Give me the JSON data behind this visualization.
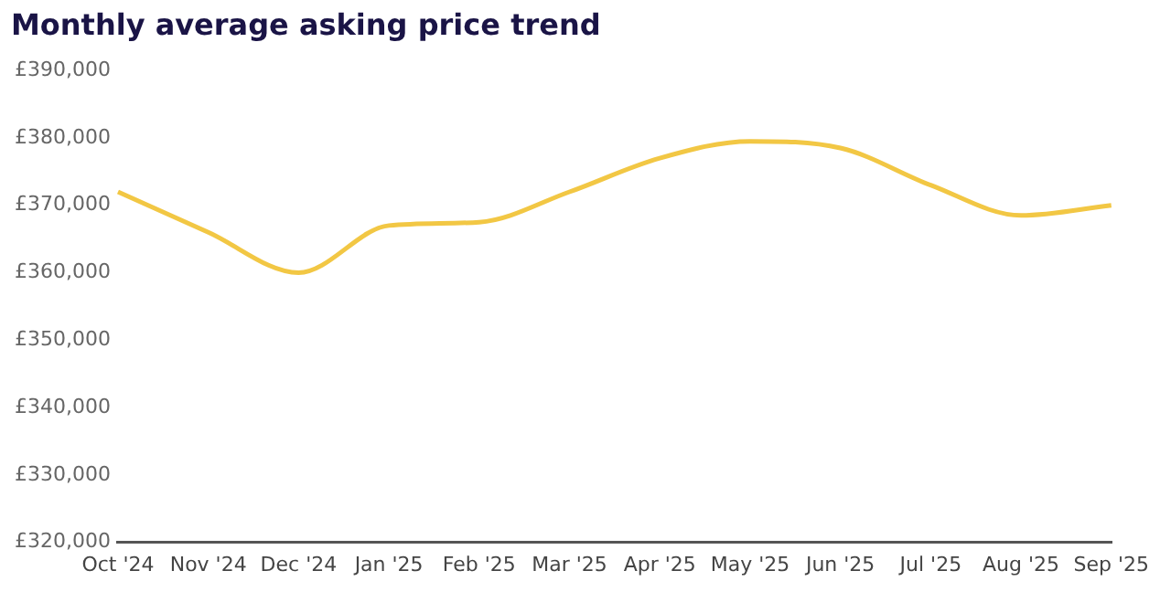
{
  "chart_data": {
    "type": "line",
    "title": "Monthly average asking price trend",
    "categories": [
      "Oct '24",
      "Nov '24",
      "Dec '24",
      "Jan '25",
      "Feb '25",
      "Mar '25",
      "Apr '25",
      "May '25",
      "Jun '25",
      "Jul '25",
      "Aug '25",
      "Sep '25"
    ],
    "series": [
      {
        "color": "#f2c744",
        "values": [
          372000,
          366000,
          360000,
          367000,
          367500,
          372000,
          377000,
          379500,
          378500,
          373000,
          368500,
          370000
        ]
      }
    ],
    "ylim": [
      320000,
      390000
    ],
    "yticks": [
      {
        "value": 320000,
        "label": "£320,000"
      },
      {
        "value": 330000,
        "label": "£330,000"
      },
      {
        "value": 340000,
        "label": "£340,000"
      },
      {
        "value": 350000,
        "label": "£350,000"
      },
      {
        "value": 360000,
        "label": "£360,000"
      },
      {
        "value": 370000,
        "label": "£370,000"
      },
      {
        "value": 380000,
        "label": "£380,000"
      },
      {
        "value": 390000,
        "label": "£390,000"
      }
    ],
    "grid": false,
    "legend": false,
    "marker": "none",
    "line_style": "solid"
  }
}
